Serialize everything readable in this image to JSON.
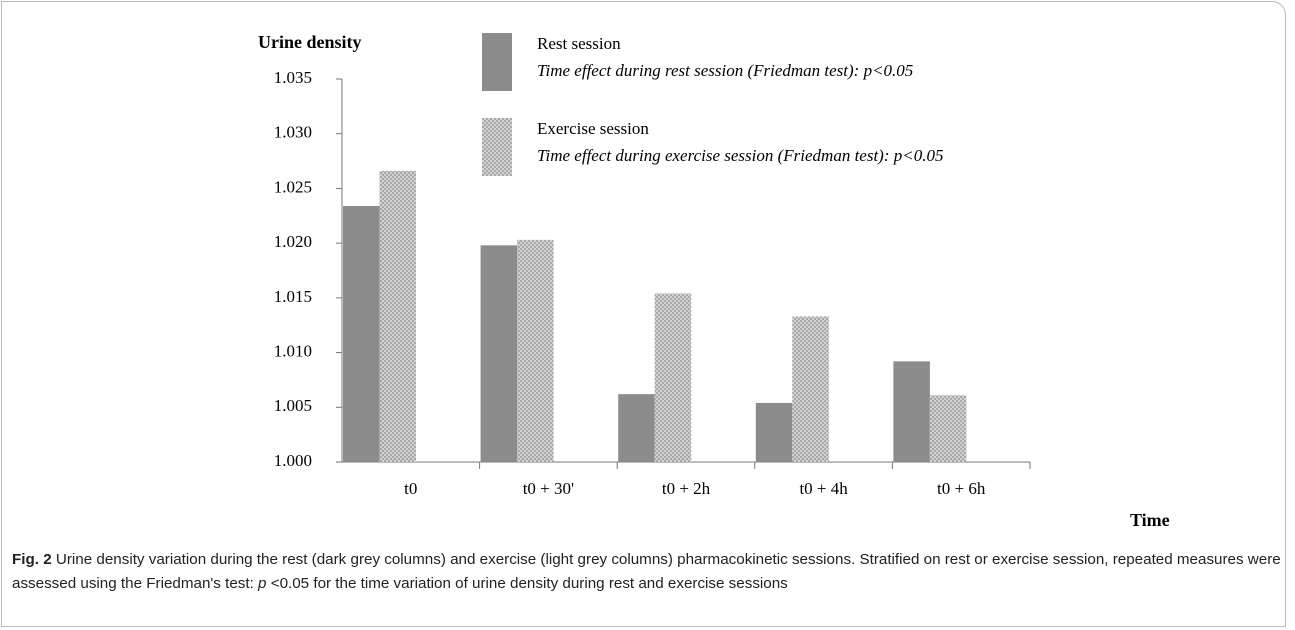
{
  "chart_data": {
    "type": "bar",
    "y_label": "Urine density",
    "x_label": "Time",
    "categories": [
      "t0",
      "t0 + 30'",
      "t0 + 2h",
      "t0 + 4h",
      "t0 + 6h"
    ],
    "series": [
      {
        "name": "Rest session",
        "note": "Time effect during rest session (Friedman test): p<0.05",
        "color": "#8c8c8c",
        "values": [
          1.0234,
          1.0198,
          1.0062,
          1.0054,
          1.0092
        ]
      },
      {
        "name": "Exercise session",
        "note": "Time effect during exercise session (Friedman test): p<0.05",
        "color": "#c4c4c4",
        "values": [
          1.0266,
          1.0203,
          1.0154,
          1.0133,
          1.0061
        ]
      }
    ],
    "ylim": [
      1.0,
      1.035
    ],
    "yticks": [
      {
        "value": 1.0,
        "label": "1.000"
      },
      1.005,
      {
        "value": 1.01,
        "label": "1.010"
      },
      1.015,
      {
        "value": 1.02,
        "label": "1.020"
      },
      1.025,
      {
        "value": 1.03,
        "label": "1.030"
      },
      1.035
    ],
    "grid": false
  },
  "caption": {
    "label": "Fig. 2",
    "text_1": " Urine density variation during the rest (dark grey columns) and exercise (light grey columns) pharmacokinetic sessions. Stratified on rest or exercise session, repeated measures were assessed using the Friedman's test: ",
    "italic": "p",
    "text_2": " <0.05 for the time variation of urine density during rest and exercise sessions"
  }
}
